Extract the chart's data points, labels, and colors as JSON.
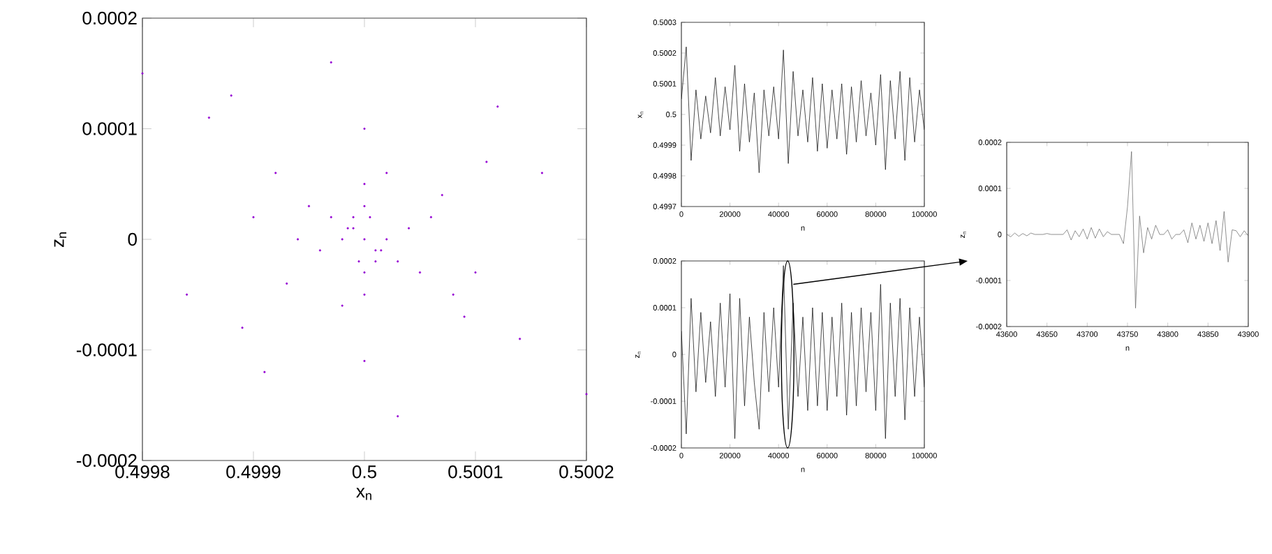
{
  "chart_data": [
    {
      "type": "scatter",
      "xlabel": "x$_{n}$",
      "ylabel": "z$_{n}$",
      "color": "#9400d3",
      "xlim": [
        0.4998,
        0.5002
      ],
      "ylim": [
        -0.0002,
        0.0002
      ],
      "xticks": [
        0.4998,
        0.4999,
        0.5,
        0.5001,
        0.5002
      ],
      "yticks": [
        -0.0002,
        -0.0001,
        0,
        0.0001,
        0.0002
      ],
      "x": [
        0.5,
        0.49999,
        0.50001,
        0.499995,
        0.500005,
        0.49998,
        0.50002,
        0.49999,
        0.50001,
        0.5,
        0.5,
        0.499985,
        0.500015,
        0.49997,
        0.50003,
        0.49996,
        0.50004,
        0.5,
        0.5,
        0.49995,
        0.50005,
        0.49998,
        0.50002,
        0.49994,
        0.50006,
        0.49993,
        0.50007,
        0.49992,
        0.50008,
        0.4999,
        0.5001,
        0.49989,
        0.50011,
        0.5,
        0.5,
        0.49986,
        0.50014,
        0.49984,
        0.50016,
        0.49997,
        0.50003,
        0.4998,
        0.5002,
        0.49988,
        0.50012,
        0.49991,
        0.50009
      ],
      "values": [
        0,
        1e-05,
        -1e-05,
        -2e-05,
        2e-05,
        0,
        0,
        2e-05,
        -2e-05,
        3e-05,
        -3e-05,
        1e-05,
        -1e-05,
        2e-05,
        -2e-05,
        -1e-05,
        1e-05,
        5e-05,
        -5e-05,
        3e-05,
        -3e-05,
        -6e-05,
        6e-05,
        0,
        2e-05,
        -4e-05,
        4e-05,
        6e-05,
        -5e-05,
        2e-05,
        -3e-05,
        -8e-05,
        7e-05,
        0.0001,
        -0.00011,
        0.00011,
        -9e-05,
        -5e-05,
        6e-05,
        0.00016,
        -0.00016,
        0.00015,
        -0.00014,
        0.00013,
        0.00012,
        -0.00012,
        -7e-05
      ]
    },
    {
      "type": "line",
      "xlabel": "n",
      "ylabel": "x$_{n}$",
      "color": "#000000",
      "xlim": [
        0,
        100000
      ],
      "ylim": [
        0.4997,
        0.5003
      ],
      "xticks": [
        0,
        20000,
        40000,
        60000,
        80000,
        100000
      ],
      "yticks": [
        0.4997,
        0.4998,
        0.4999,
        0.5,
        0.5001,
        0.5002,
        0.5003
      ],
      "x": [
        0,
        2000,
        4000,
        6000,
        8000,
        10000,
        12000,
        14000,
        16000,
        18000,
        20000,
        22000,
        24000,
        26000,
        28000,
        30000,
        32000,
        34000,
        36000,
        38000,
        40000,
        42000,
        44000,
        46000,
        48000,
        50000,
        52000,
        54000,
        56000,
        58000,
        60000,
        62000,
        64000,
        66000,
        68000,
        70000,
        72000,
        74000,
        76000,
        78000,
        80000,
        82000,
        84000,
        86000,
        88000,
        90000,
        92000,
        94000,
        96000,
        98000,
        100000
      ],
      "values": [
        0.50005,
        0.50022,
        0.49985,
        0.50008,
        0.49992,
        0.50006,
        0.49994,
        0.50012,
        0.49993,
        0.50009,
        0.49995,
        0.50016,
        0.49988,
        0.5001,
        0.49991,
        0.50007,
        0.49981,
        0.50008,
        0.49993,
        0.50009,
        0.49992,
        0.50021,
        0.49984,
        0.50014,
        0.49993,
        0.50008,
        0.49991,
        0.50012,
        0.49988,
        0.5001,
        0.49989,
        0.50008,
        0.49992,
        0.5001,
        0.49987,
        0.50009,
        0.49991,
        0.50011,
        0.49993,
        0.50007,
        0.4999,
        0.50013,
        0.49982,
        0.50011,
        0.49992,
        0.50014,
        0.49985,
        0.50012,
        0.49991,
        0.50008,
        0.49995
      ]
    },
    {
      "type": "line",
      "xlabel": "n",
      "ylabel": "z$_{n}$",
      "color": "#000000",
      "xlim": [
        0,
        100000
      ],
      "ylim": [
        -0.0002,
        0.0002
      ],
      "xticks": [
        0,
        20000,
        40000,
        60000,
        80000,
        100000
      ],
      "yticks": [
        -0.0002,
        -0.0001,
        0,
        0.0001,
        0.0002
      ],
      "x": [
        0,
        2000,
        4000,
        6000,
        8000,
        10000,
        12000,
        14000,
        16000,
        18000,
        20000,
        22000,
        24000,
        26000,
        28000,
        30000,
        32000,
        34000,
        36000,
        38000,
        40000,
        42000,
        44000,
        46000,
        48000,
        50000,
        52000,
        54000,
        56000,
        58000,
        60000,
        62000,
        64000,
        66000,
        68000,
        70000,
        72000,
        74000,
        76000,
        78000,
        80000,
        82000,
        84000,
        86000,
        88000,
        90000,
        92000,
        94000,
        96000,
        98000,
        100000
      ],
      "values": [
        5e-05,
        -0.00017,
        0.00012,
        -8e-05,
        9e-05,
        -6e-05,
        7e-05,
        -9e-05,
        0.00011,
        -7e-05,
        0.00013,
        -0.00018,
        0.00012,
        -0.00011,
        8e-05,
        -6e-05,
        -0.00016,
        9e-05,
        -8e-05,
        0.0001,
        -7e-05,
        0.00019,
        -0.00016,
        0.00011,
        -9e-05,
        8e-05,
        -0.00012,
        0.0001,
        -0.00011,
        9e-05,
        -0.00012,
        8e-05,
        -9e-05,
        0.00011,
        -0.00013,
        9e-05,
        -0.00011,
        0.0001,
        -8e-05,
        9e-05,
        -0.00012,
        0.00015,
        -0.00018,
        0.00011,
        -9e-05,
        0.00012,
        -0.00014,
        0.0001,
        -9e-05,
        8e-05,
        -7e-05
      ]
    },
    {
      "type": "line",
      "xlabel": "n",
      "ylabel": "z$_{n}$",
      "color": "#606060",
      "xlim": [
        43600,
        43900
      ],
      "ylim": [
        -0.0002,
        0.0002
      ],
      "xticks": [
        43600,
        43650,
        43700,
        43750,
        43800,
        43850,
        43900
      ],
      "yticks": [
        -0.0002,
        -0.0001,
        0,
        0.0001,
        0.0002
      ],
      "x": [
        43600,
        43605,
        43610,
        43615,
        43620,
        43625,
        43630,
        43635,
        43640,
        43645,
        43650,
        43655,
        43660,
        43665,
        43670,
        43675,
        43680,
        43685,
        43690,
        43695,
        43700,
        43705,
        43710,
        43715,
        43720,
        43725,
        43730,
        43735,
        43740,
        43745,
        43750,
        43755,
        43760,
        43765,
        43770,
        43775,
        43780,
        43785,
        43790,
        43795,
        43800,
        43805,
        43810,
        43815,
        43820,
        43825,
        43830,
        43835,
        43840,
        43845,
        43850,
        43855,
        43860,
        43865,
        43870,
        43875,
        43880,
        43885,
        43890,
        43895,
        43900
      ],
      "values": [
        0,
        -5e-06,
        3e-06,
        -4e-06,
        2e-06,
        -3e-06,
        3e-06,
        0,
        0,
        0,
        2e-06,
        0,
        0,
        0,
        0,
        1e-05,
        -1.2e-05,
        8e-06,
        -5e-06,
        1.2e-05,
        -1e-05,
        1.5e-05,
        -8e-06,
        1.2e-05,
        -5e-06,
        6e-06,
        0,
        0,
        0,
        -2e-05,
        6e-05,
        0.00018,
        -0.00016,
        4e-05,
        -4e-05,
        1.5e-05,
        -1e-05,
        2e-05,
        0,
        0,
        1e-05,
        -1e-05,
        0,
        0,
        1e-05,
        -1.8e-05,
        2.5e-05,
        -1e-05,
        2e-05,
        -1.5e-05,
        2.5e-05,
        -2e-05,
        3e-05,
        -3.5e-05,
        5e-05,
        -6e-05,
        1e-05,
        8e-06,
        -5e-06,
        8e-06,
        -3e-06
      ]
    }
  ]
}
